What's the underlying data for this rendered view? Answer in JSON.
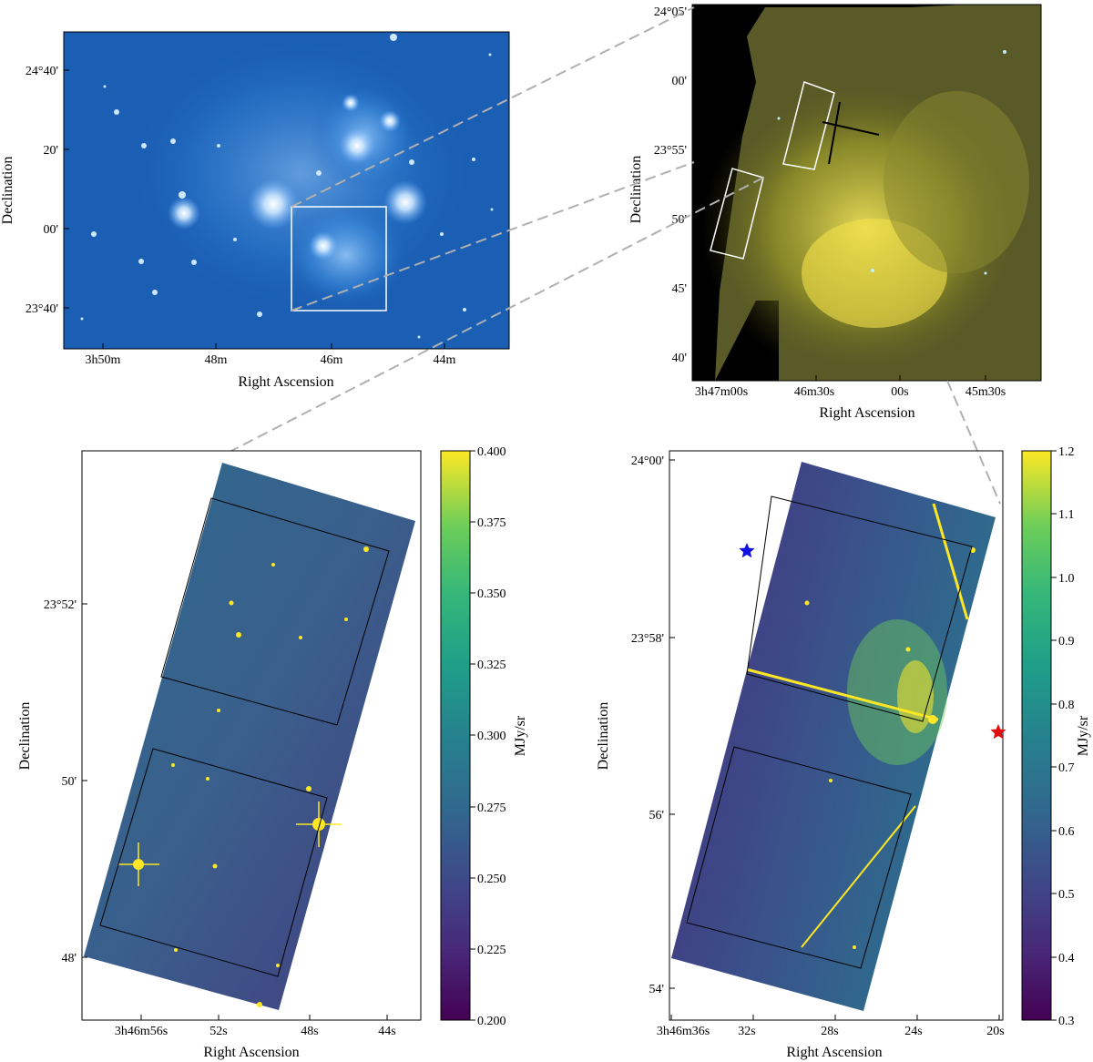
{
  "panels": {
    "tl": {
      "xlabel": "Right Ascension",
      "ylabel": "Declination",
      "xticks": [
        "3h50m",
        "48m",
        "46m",
        "44m"
      ],
      "yticks": [
        "24°40'",
        "20'",
        "00'",
        "23°40'"
      ]
    },
    "tr": {
      "xlabel": "Right Ascension",
      "ylabel": "Declination",
      "xticks": [
        "3h47m00s",
        "46m30s",
        "00s",
        "45m30s"
      ],
      "yticks": [
        "24°05'",
        "00'",
        "23°55'",
        "50'",
        "45'",
        "40'"
      ]
    },
    "bl": {
      "xlabel": "Right Ascension",
      "ylabel": "Declination",
      "xticks": [
        "3h46m56s",
        "52s",
        "48s",
        "44s"
      ],
      "yticks": [
        "23°52'",
        "50'",
        "48'"
      ],
      "colorbar_label": "MJy/sr",
      "colorbar_ticks": [
        "0.400",
        "0.375",
        "0.350",
        "0.325",
        "0.300",
        "0.275",
        "0.250",
        "0.225",
        "0.200"
      ]
    },
    "br": {
      "xlabel": "Right Ascension",
      "ylabel": "Declination",
      "xticks": [
        "3h46m36s",
        "32s",
        "28s",
        "24s",
        "20s"
      ],
      "yticks": [
        "24°00'",
        "23°58'",
        "56'",
        "54'"
      ],
      "colorbar_label": "MJy/sr",
      "colorbar_ticks": [
        "1.2",
        "1.1",
        "1.0",
        "0.9",
        "0.8",
        "0.7",
        "0.6",
        "0.5",
        "0.4",
        "0.3"
      ]
    }
  },
  "colors": {
    "blue_image": "#1a5fb4",
    "viridis_low": "#440154",
    "viridis_high": "#fde725",
    "marker_blue": "#1010e0",
    "marker_red": "#e01010",
    "connector": "#b0b0b0"
  }
}
